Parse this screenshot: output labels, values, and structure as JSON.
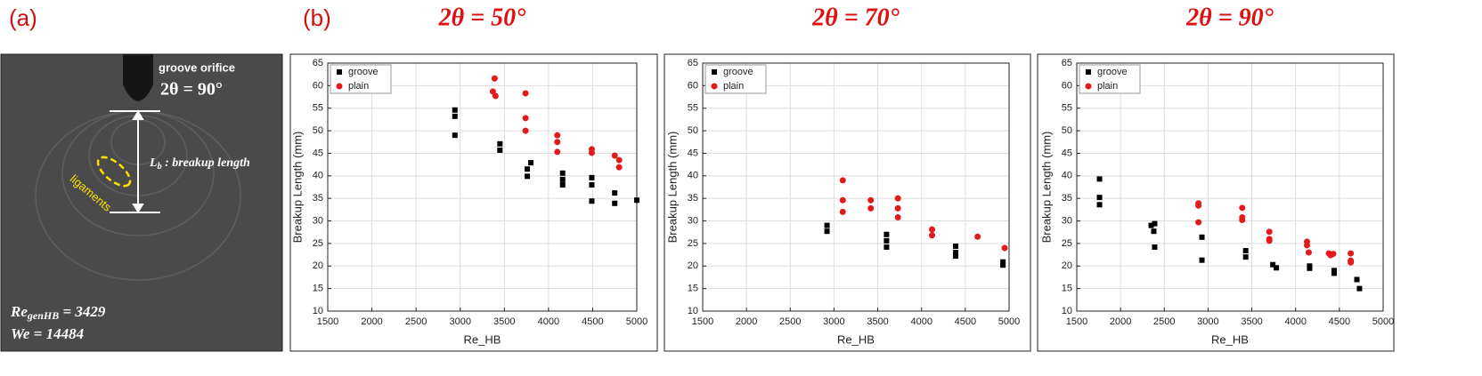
{
  "labels": {
    "panel_a": "(a)",
    "panel_b": "(b)",
    "orifice": "groove orifice",
    "angle": "2θ = 90°",
    "breakup": {
      "main": "L",
      "sub": "b",
      "rest": " : breakup length"
    },
    "ligaments": "ligaments",
    "reynolds": {
      "main": "Re",
      "sub": "genHB",
      "rest": " = 3429"
    },
    "weber": "We = 14484"
  },
  "chart_data": [
    {
      "type": "scatter",
      "title": "2θ = 50°",
      "xlabel": "Re_HB",
      "ylabel": "Breakup Length (mm)",
      "xlim": [
        1500,
        5000
      ],
      "ylim": [
        10,
        65
      ],
      "xticks": [
        1500,
        2000,
        2500,
        3000,
        3500,
        4000,
        4500,
        5000
      ],
      "yticks": [
        10,
        15,
        20,
        25,
        30,
        35,
        40,
        45,
        50,
        55,
        60,
        65
      ],
      "grid": true,
      "legend": "upper left",
      "series": [
        {
          "name": "groove",
          "color": "#000000",
          "marker": "square",
          "x": [
            2940,
            2940,
            2940,
            3450,
            3450,
            3800,
            3760,
            3760,
            4160,
            4160,
            4160,
            4490,
            4490,
            4490,
            4750,
            4750,
            5000
          ],
          "y": [
            54.6,
            53.2,
            49.0,
            47.1,
            45.7,
            42.9,
            41.5,
            39.9,
            40.6,
            39.2,
            38.0,
            39.6,
            38.0,
            34.4,
            36.2,
            33.9,
            34.6
          ]
        },
        {
          "name": "plain",
          "color": "#e31a1c",
          "marker": "circle",
          "x": [
            3390,
            3370,
            3400,
            3740,
            3740,
            3740,
            4100,
            4100,
            4100,
            4490,
            4490,
            4750,
            4800,
            4800
          ],
          "y": [
            61.6,
            58.7,
            57.7,
            58.3,
            52.8,
            50.0,
            49.0,
            47.5,
            45.3,
            45.9,
            45.1,
            44.5,
            43.5,
            41.9
          ]
        }
      ]
    },
    {
      "type": "scatter",
      "title": "2θ = 70°",
      "xlabel": "Re_HB",
      "ylabel": "Breakup Length (mm)",
      "xlim": [
        1500,
        5000
      ],
      "ylim": [
        10,
        65
      ],
      "xticks": [
        1500,
        2000,
        2500,
        3000,
        3500,
        4000,
        4500,
        5000
      ],
      "yticks": [
        10,
        15,
        20,
        25,
        30,
        35,
        40,
        45,
        50,
        55,
        60,
        65
      ],
      "grid": true,
      "legend": "upper left",
      "series": [
        {
          "name": "groove",
          "color": "#000000",
          "marker": "square",
          "x": [
            2920,
            2920,
            3600,
            3600,
            3600,
            4390,
            4390,
            4390,
            4930,
            4930
          ],
          "y": [
            29.0,
            27.7,
            27.0,
            25.6,
            24.2,
            24.4,
            23.0,
            22.2,
            20.9,
            20.2
          ]
        },
        {
          "name": "plain",
          "color": "#e31a1c",
          "marker": "circle",
          "x": [
            3100,
            3100,
            3100,
            3420,
            3420,
            3730,
            3730,
            3730,
            4120,
            4120,
            4640,
            4950
          ],
          "y": [
            39.0,
            34.6,
            32.0,
            34.6,
            32.8,
            35.0,
            32.8,
            30.8,
            28.1,
            26.8,
            26.5,
            24.0
          ]
        }
      ]
    },
    {
      "type": "scatter",
      "title": "2θ = 90°",
      "xlabel": "Re_HB",
      "ylabel": "Breakup Length (mm)",
      "xlim": [
        1500,
        5000
      ],
      "ylim": [
        10,
        65
      ],
      "xticks": [
        1500,
        2000,
        2500,
        3000,
        3500,
        4000,
        4500,
        5000
      ],
      "yticks": [
        10,
        15,
        20,
        25,
        30,
        35,
        40,
        45,
        50,
        55,
        60,
        65
      ],
      "grid": true,
      "legend": "upper left",
      "series": [
        {
          "name": "groove",
          "color": "#000000",
          "marker": "square",
          "x": [
            1760,
            1760,
            1760,
            2350,
            2390,
            2380,
            2390,
            2930,
            2930,
            3430,
            3430,
            3740,
            3780,
            4160,
            4160,
            4440,
            4440,
            4700,
            4730
          ],
          "y": [
            39.3,
            35.2,
            33.6,
            29.0,
            29.4,
            27.7,
            24.2,
            26.4,
            21.3,
            23.4,
            22.0,
            20.3,
            19.6,
            20.0,
            19.5,
            19.0,
            18.4,
            17.0,
            15.0
          ]
        },
        {
          "name": "plain",
          "color": "#e31a1c",
          "marker": "circle",
          "x": [
            2890,
            2890,
            2890,
            3390,
            3390,
            3390,
            3700,
            3700,
            3700,
            4130,
            4130,
            4150,
            4380,
            4400,
            4430,
            4630,
            4630,
            4630
          ],
          "y": [
            33.9,
            33.4,
            29.7,
            32.9,
            30.8,
            30.2,
            27.6,
            26.0,
            25.6,
            25.4,
            24.6,
            23.0,
            22.8,
            22.4,
            22.7,
            22.8,
            21.2,
            20.8
          ]
        }
      ]
    }
  ]
}
